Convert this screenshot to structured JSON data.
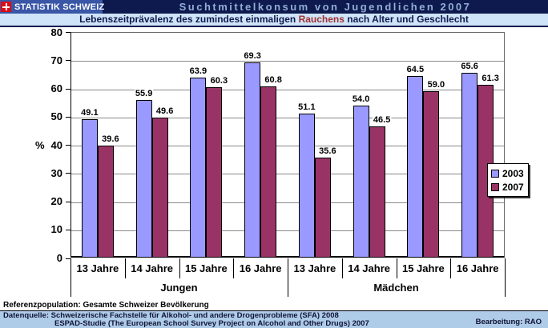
{
  "header": {
    "logo_text": "STATISTIK SCHWEIZ",
    "title": "Suchtmittelkonsum von Jugendlichen 2007"
  },
  "subtitle": {
    "before": "Lebenszeitprävalenz des zumindest einmaligen ",
    "highlight": "Rauchens",
    "after": " nach Alter und Geschlecht"
  },
  "chart_data": {
    "type": "bar",
    "title": "Lebenszeitprävalenz des zumindest einmaligen Rauchens nach Alter und Geschlecht",
    "ylabel": "%",
    "ylim": [
      0,
      80
    ],
    "ytick_step": 10,
    "grid": true,
    "legend_position": "right",
    "groups": [
      {
        "label": "Jungen",
        "categories": [
          "13 Jahre",
          "14 Jahre",
          "15 Jahre",
          "16 Jahre"
        ]
      },
      {
        "label": "Mädchen",
        "categories": [
          "13 Jahre",
          "14 Jahre",
          "15 Jahre",
          "16 Jahre"
        ]
      }
    ],
    "series": [
      {
        "name": "2003",
        "color": "#9999ff",
        "values": [
          49.1,
          55.9,
          63.9,
          69.3,
          51.1,
          54.0,
          64.5,
          65.6
        ]
      },
      {
        "name": "2007",
        "color": "#993366",
        "values": [
          39.6,
          49.6,
          60.3,
          60.8,
          35.6,
          46.5,
          59.0,
          61.3
        ]
      }
    ]
  },
  "colors": {
    "header_bg": "#0e1a4e",
    "logo_bg": "#3a57a7",
    "title_text": "#92aed6",
    "subtitle_bg": "#cfe4f8",
    "subtitle_highlight": "#a03030",
    "series_2003": "#9999ff",
    "series_2007": "#993366",
    "footer_band_bg": "#aecbe8"
  },
  "footer": {
    "reference": "Referenzpopulation: Gesamte Schweizer Bevölkerung",
    "source_line1": "Datenquelle: Schweizerische Fachstelle für Alkohol- und andere Drogenprobleme (SFA) 2008",
    "source_line2": "ESPAD-Studie (The European School Survey Project on Alcohol and Other Drugs) 2007",
    "editor": "Bearbeitung: RAO"
  }
}
